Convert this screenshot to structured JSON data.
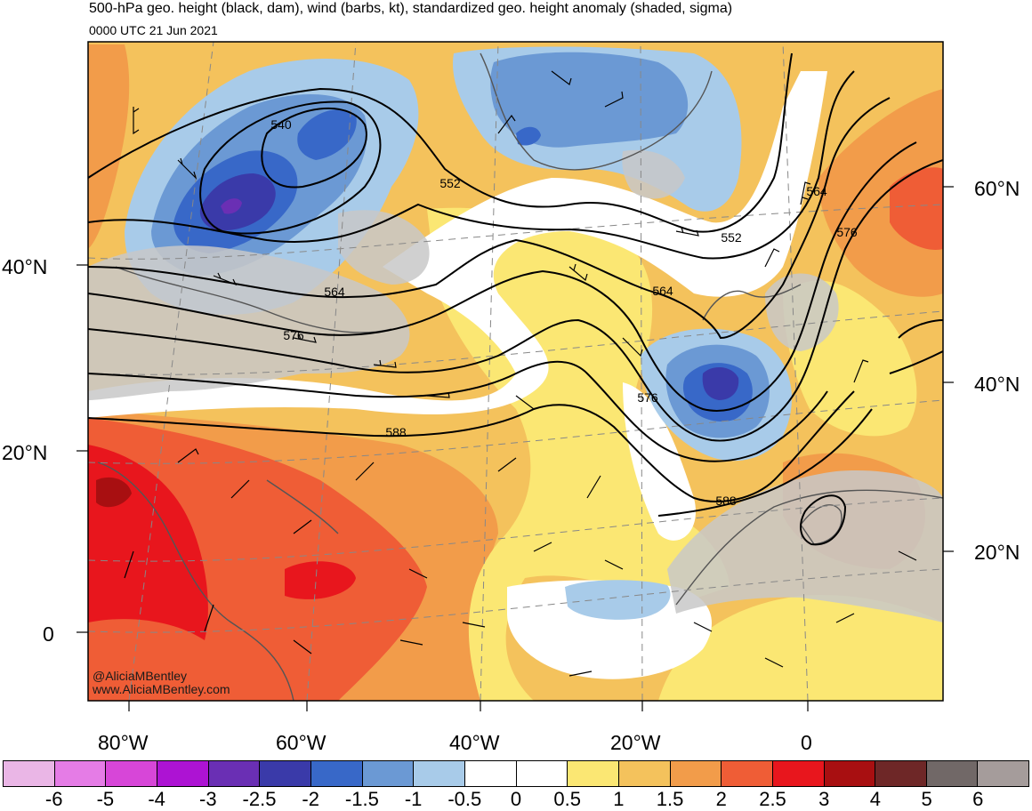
{
  "title": "500-hPa geo. height (black, dam), wind (barbs, kt), standardized geo. height anomaly (shaded, sigma)",
  "valid_time": "0000 UTC 21 Jun 2021",
  "credits": {
    "handle": "@AliciaMBentley",
    "website": "www.AliciaMBentley.com"
  },
  "left_lat_labels": [
    "40°N",
    "20°N",
    "0"
  ],
  "right_lat_labels": [
    "60°N",
    "40°N",
    "20°N"
  ],
  "lon_labels": [
    "80°W",
    "60°W",
    "40°W",
    "20°W",
    "0"
  ],
  "contour_labels": [
    "540",
    "552",
    "564",
    "576",
    "588",
    "552",
    "564",
    "576",
    "588",
    "564",
    "576"
  ],
  "colorbar": {
    "colors": [
      "#eab6e6",
      "#e57ce6",
      "#d746d8",
      "#ad13d3",
      "#6a2fb4",
      "#3a3aa9",
      "#3868c8",
      "#6b99d4",
      "#a8cbe9",
      "#ffffff",
      "#ffffff",
      "#fbe773",
      "#f4c25c",
      "#f29c4a",
      "#ef5d36",
      "#e8161d",
      "#a80f11",
      "#6e2727",
      "#716867",
      "#a59c9b"
    ],
    "ticks": [
      "-6",
      "-5",
      "-4",
      "-3",
      "-2.5",
      "-2",
      "-1.5",
      "-1",
      "-0.5",
      "0",
      "0.5",
      "1",
      "1.5",
      "2",
      "2.5",
      "3",
      "4",
      "5",
      "6"
    ]
  }
}
